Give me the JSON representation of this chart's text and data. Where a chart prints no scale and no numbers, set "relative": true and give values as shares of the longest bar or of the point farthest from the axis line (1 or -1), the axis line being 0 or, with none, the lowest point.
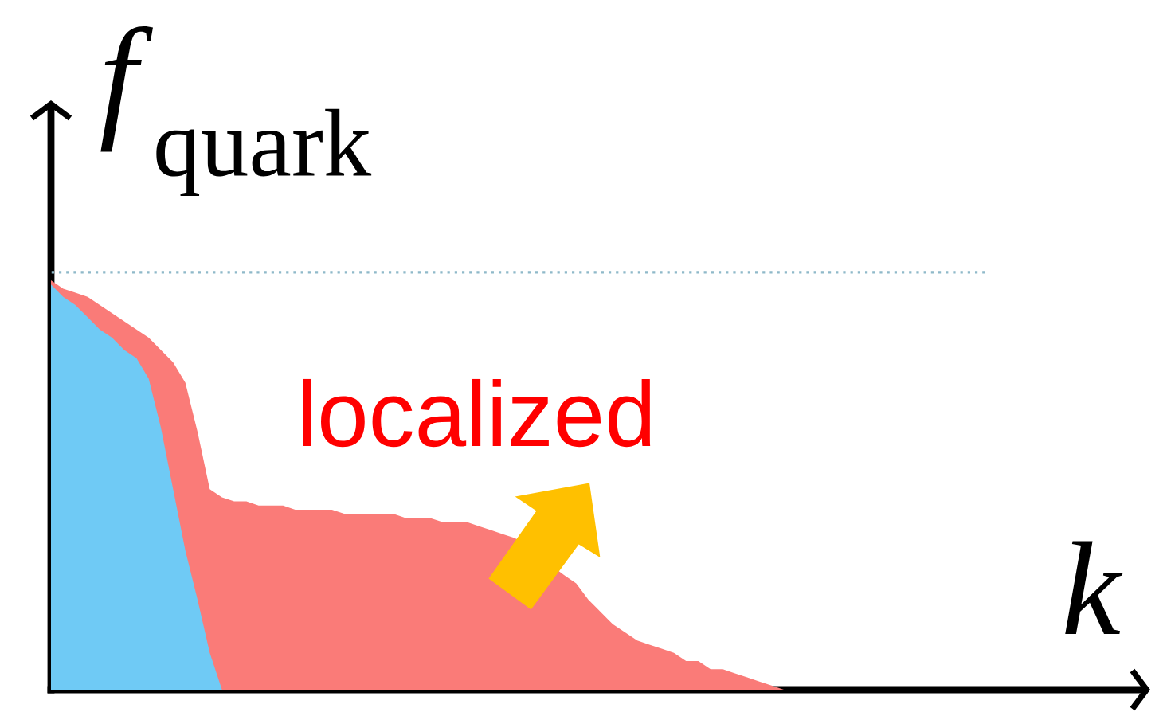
{
  "chart_data": {
    "type": "area",
    "relative": true,
    "xlabel": "k",
    "ylabel": "*f*$_{quark}$",
    "categories": [
      null,
      null,
      null,
      null,
      null,
      null,
      null,
      null,
      null,
      null,
      null,
      null,
      null,
      null,
      null,
      null,
      null,
      null,
      null,
      null,
      null,
      null,
      null,
      null,
      null,
      null,
      null,
      null,
      null,
      null,
      null,
      null,
      null,
      null,
      null,
      null,
      null,
      null,
      null,
      null,
      null,
      null,
      null,
      null,
      null,
      null,
      null,
      null,
      null,
      null,
      null,
      null,
      null,
      null,
      null,
      null,
      null,
      null,
      null,
      null,
      null
    ],
    "series": [
      {
        "name": "localized",
        "color": "#fa7b78",
        "values": [
          1.0,
          0.98,
          0.97,
          0.96,
          0.94,
          0.92,
          0.9,
          0.88,
          0.86,
          0.83,
          0.8,
          0.75,
          0.63,
          0.49,
          0.47,
          0.46,
          0.46,
          0.45,
          0.45,
          0.45,
          0.44,
          0.44,
          0.44,
          0.44,
          0.43,
          0.43,
          0.43,
          0.43,
          0.43,
          0.42,
          0.42,
          0.42,
          0.41,
          0.41,
          0.41,
          0.4,
          0.39,
          0.38,
          0.37,
          null,
          null,
          null,
          0.28,
          0.26,
          0.22,
          0.19,
          0.16,
          0.14,
          0.12,
          0.11,
          0.1,
          0.09,
          0.07,
          0.07,
          0.05,
          0.05,
          0.04,
          0.03,
          0.02,
          0.01,
          0
        ]
      },
      {
        "color": "#6fcaf5",
        "values": [
          0.99,
          0.96,
          0.94,
          0.91,
          0.88,
          0.86,
          0.83,
          0.81,
          0.76,
          0.64,
          0.49,
          0.34,
          0.22,
          0.09,
          0,
          null,
          null,
          null,
          null,
          null,
          null,
          null,
          null,
          null,
          null,
          null,
          null,
          null,
          null,
          null,
          null,
          null,
          null,
          null,
          null,
          null,
          null,
          null,
          null,
          null,
          null,
          null,
          null,
          null,
          null,
          null,
          null,
          null,
          null,
          null,
          null,
          null,
          null,
          null,
          null,
          null,
          null,
          null,
          null,
          null,
          null
        ]
      }
    ],
    "ref_lines": [
      {
        "axis": "y",
        "value": 1.02,
        "color": "#8fb9c9",
        "line_style": "dotted"
      }
    ]
  }
}
